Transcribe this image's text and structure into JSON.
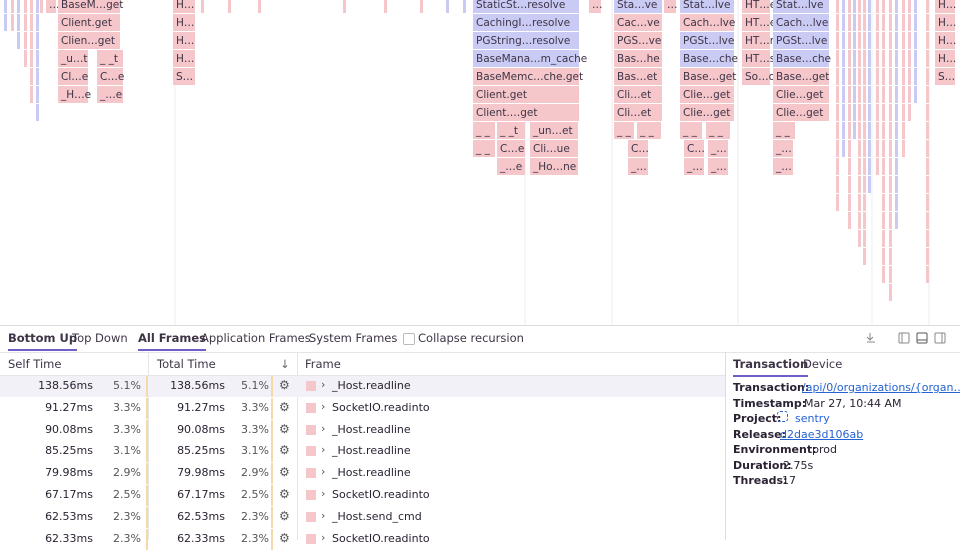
{
  "flamegraph": {
    "blocks": [
      {
        "label": "…",
        "color": "#f5c6ca"
      },
      {
        "label": "BaseM…get",
        "color": "#f5c6ca"
      },
      {
        "label": "Client.get",
        "color": "#f5c6ca"
      },
      {
        "label": "Clien…get",
        "color": "#f5c6ca"
      },
      {
        "label": "_u…t",
        "color": "#f5c6ca"
      },
      {
        "label": "_ _t",
        "color": "#f5c6ca"
      },
      {
        "label": "Cl…e",
        "color": "#f5c6ca"
      },
      {
        "label": "C…e",
        "color": "#f5c6ca"
      },
      {
        "label": "_H…e",
        "color": "#f5c6ca"
      },
      {
        "label": "_…e",
        "color": "#f5c6ca"
      },
      {
        "label": "H…",
        "color": "#f5c6ca"
      },
      {
        "label": "H…",
        "color": "#f5c6ca"
      },
      {
        "label": "H…",
        "color": "#f5c6ca"
      },
      {
        "label": "H…",
        "color": "#f5c6ca"
      },
      {
        "label": "S…",
        "color": "#f5c6ca"
      },
      {
        "label": "StaticSt…resolve",
        "color": "#c9cbf5"
      },
      {
        "label": "CachingI…resolve",
        "color": "#c9cbf5"
      },
      {
        "label": "PGString…resolve",
        "color": "#c9cbf5"
      },
      {
        "label": "BaseMana…m_cache",
        "color": "#c9cbf5"
      },
      {
        "label": "BaseMemc…che.get",
        "color": "#f5c6ca"
      },
      {
        "label": "Client.get",
        "color": "#f5c6ca"
      },
      {
        "label": "Client.…get",
        "color": "#f5c6ca"
      },
      {
        "label": "_ _",
        "color": "#f5c6ca"
      },
      {
        "label": "_ _t",
        "color": "#f5c6ca"
      },
      {
        "label": "_un…et",
        "color": "#f5c6ca"
      },
      {
        "label": "_ _",
        "color": "#f5c6ca"
      },
      {
        "label": "C…e",
        "color": "#f5c6ca"
      },
      {
        "label": "Cli…ue",
        "color": "#f5c6ca"
      },
      {
        "label": "_…e",
        "color": "#f5c6ca"
      },
      {
        "label": "_Ho…ne",
        "color": "#f5c6ca"
      },
      {
        "label": "…",
        "color": "#f5c6ca"
      },
      {
        "label": "Sta…ve",
        "color": "#c9cbf5"
      },
      {
        "label": "Cac…ve",
        "color": "#f5c6ca"
      },
      {
        "label": "PGS…ve",
        "color": "#f5c6ca"
      },
      {
        "label": "Bas…he",
        "color": "#f5c6ca"
      },
      {
        "label": "Bas…et",
        "color": "#f5c6ca"
      },
      {
        "label": "Cli…et",
        "color": "#f5c6ca"
      },
      {
        "label": "Cli…et",
        "color": "#f5c6ca"
      },
      {
        "label": "_ _",
        "color": "#f5c6ca"
      },
      {
        "label": "_ _",
        "color": "#f5c6ca"
      },
      {
        "label": "C…",
        "color": "#f5c6ca"
      },
      {
        "label": "_…",
        "color": "#f5c6ca"
      },
      {
        "label": "…",
        "color": "#f5c6ca"
      },
      {
        "label": "Stat…lve",
        "color": "#c9cbf5"
      },
      {
        "label": "Cach…lve",
        "color": "#f5c6ca"
      },
      {
        "label": "PGSt…lve",
        "color": "#c9cbf5"
      },
      {
        "label": "Base…che",
        "color": "#c9cbf5"
      },
      {
        "label": "Base…get",
        "color": "#f5c6ca"
      },
      {
        "label": "Clie…get",
        "color": "#f5c6ca"
      },
      {
        "label": "Clie…get",
        "color": "#f5c6ca"
      },
      {
        "label": "_ _",
        "color": "#f5c6ca"
      },
      {
        "label": "_ _",
        "color": "#f5c6ca"
      },
      {
        "label": "C…",
        "color": "#f5c6ca"
      },
      {
        "label": "_…",
        "color": "#f5c6ca"
      },
      {
        "label": "_…",
        "color": "#f5c6ca"
      },
      {
        "label": "_…",
        "color": "#f5c6ca"
      },
      {
        "label": "HT…e",
        "color": "#f5c6ca"
      },
      {
        "label": "HT…e",
        "color": "#f5c6ca"
      },
      {
        "label": "HT…n",
        "color": "#f5c6ca"
      },
      {
        "label": "HT…s",
        "color": "#f5c6ca"
      },
      {
        "label": "So…o",
        "color": "#f5c6ca"
      },
      {
        "label": "Stat…lve",
        "color": "#c9cbf5"
      },
      {
        "label": "Cach…lve",
        "color": "#c9cbf5"
      },
      {
        "label": "PGSt…lve",
        "color": "#c9cbf5"
      },
      {
        "label": "Base…che",
        "color": "#c9cbf5"
      },
      {
        "label": "Base…get",
        "color": "#f5c6ca"
      },
      {
        "label": "Clie…get",
        "color": "#f5c6ca"
      },
      {
        "label": "Clie…get",
        "color": "#f5c6ca"
      },
      {
        "label": "_ _",
        "color": "#f5c6ca"
      },
      {
        "label": "_…",
        "color": "#f5c6ca"
      },
      {
        "label": "_…",
        "color": "#f5c6ca"
      },
      {
        "label": "H…",
        "color": "#f5c6ca"
      },
      {
        "label": "H…",
        "color": "#f5c6ca"
      },
      {
        "label": "H…",
        "color": "#f5c6ca"
      },
      {
        "label": "H…",
        "color": "#f5c6ca"
      },
      {
        "label": "S…",
        "color": "#f5c6ca"
      }
    ]
  },
  "tabs": {
    "views": [
      "Bottom Up",
      "Top Down"
    ],
    "frames": [
      "All Frames",
      "Application Frames",
      "System Frames"
    ],
    "collapse": "Collapse recursion"
  },
  "table": {
    "columns": [
      "Self Time",
      "Total Time",
      "Frame"
    ],
    "rows": [
      [
        "138.56ms",
        "5.1%",
        "138.56ms",
        "5.1%",
        "_Host.readline"
      ],
      [
        "91.27ms",
        "3.3%",
        "91.27ms",
        "3.3%",
        "SocketIO.readinto"
      ],
      [
        "90.08ms",
        "3.3%",
        "90.08ms",
        "3.3%",
        "_Host.readline"
      ],
      [
        "85.25ms",
        "3.1%",
        "85.25ms",
        "3.1%",
        "_Host.readline"
      ],
      [
        "79.98ms",
        "2.9%",
        "79.98ms",
        "2.9%",
        "_Host.readline"
      ],
      [
        "67.17ms",
        "2.5%",
        "67.17ms",
        "2.5%",
        "SocketIO.readinto"
      ],
      [
        "62.53ms",
        "2.3%",
        "62.53ms",
        "2.3%",
        "_Host.send_cmd"
      ],
      [
        "62.33ms",
        "2.3%",
        "62.33ms",
        "2.3%",
        "SocketIO.readinto"
      ]
    ]
  },
  "details": {
    "tabs": [
      "Transaction",
      "Device"
    ],
    "items": [
      {
        "key": "Transaction:",
        "value": "/api/0/organizations/{organ…"
      },
      {
        "key": "Timestamp:",
        "value": "Mar 27, 10:44 AM"
      },
      {
        "key": "Project:",
        "value": "sentry"
      },
      {
        "key": "Release:",
        "value": "d2dae3d106ab"
      },
      {
        "key": "Environment:",
        "value": "prod"
      },
      {
        "key": "Duration:",
        "value": "2.75s"
      },
      {
        "key": "Threads:",
        "value": "17"
      }
    ]
  }
}
